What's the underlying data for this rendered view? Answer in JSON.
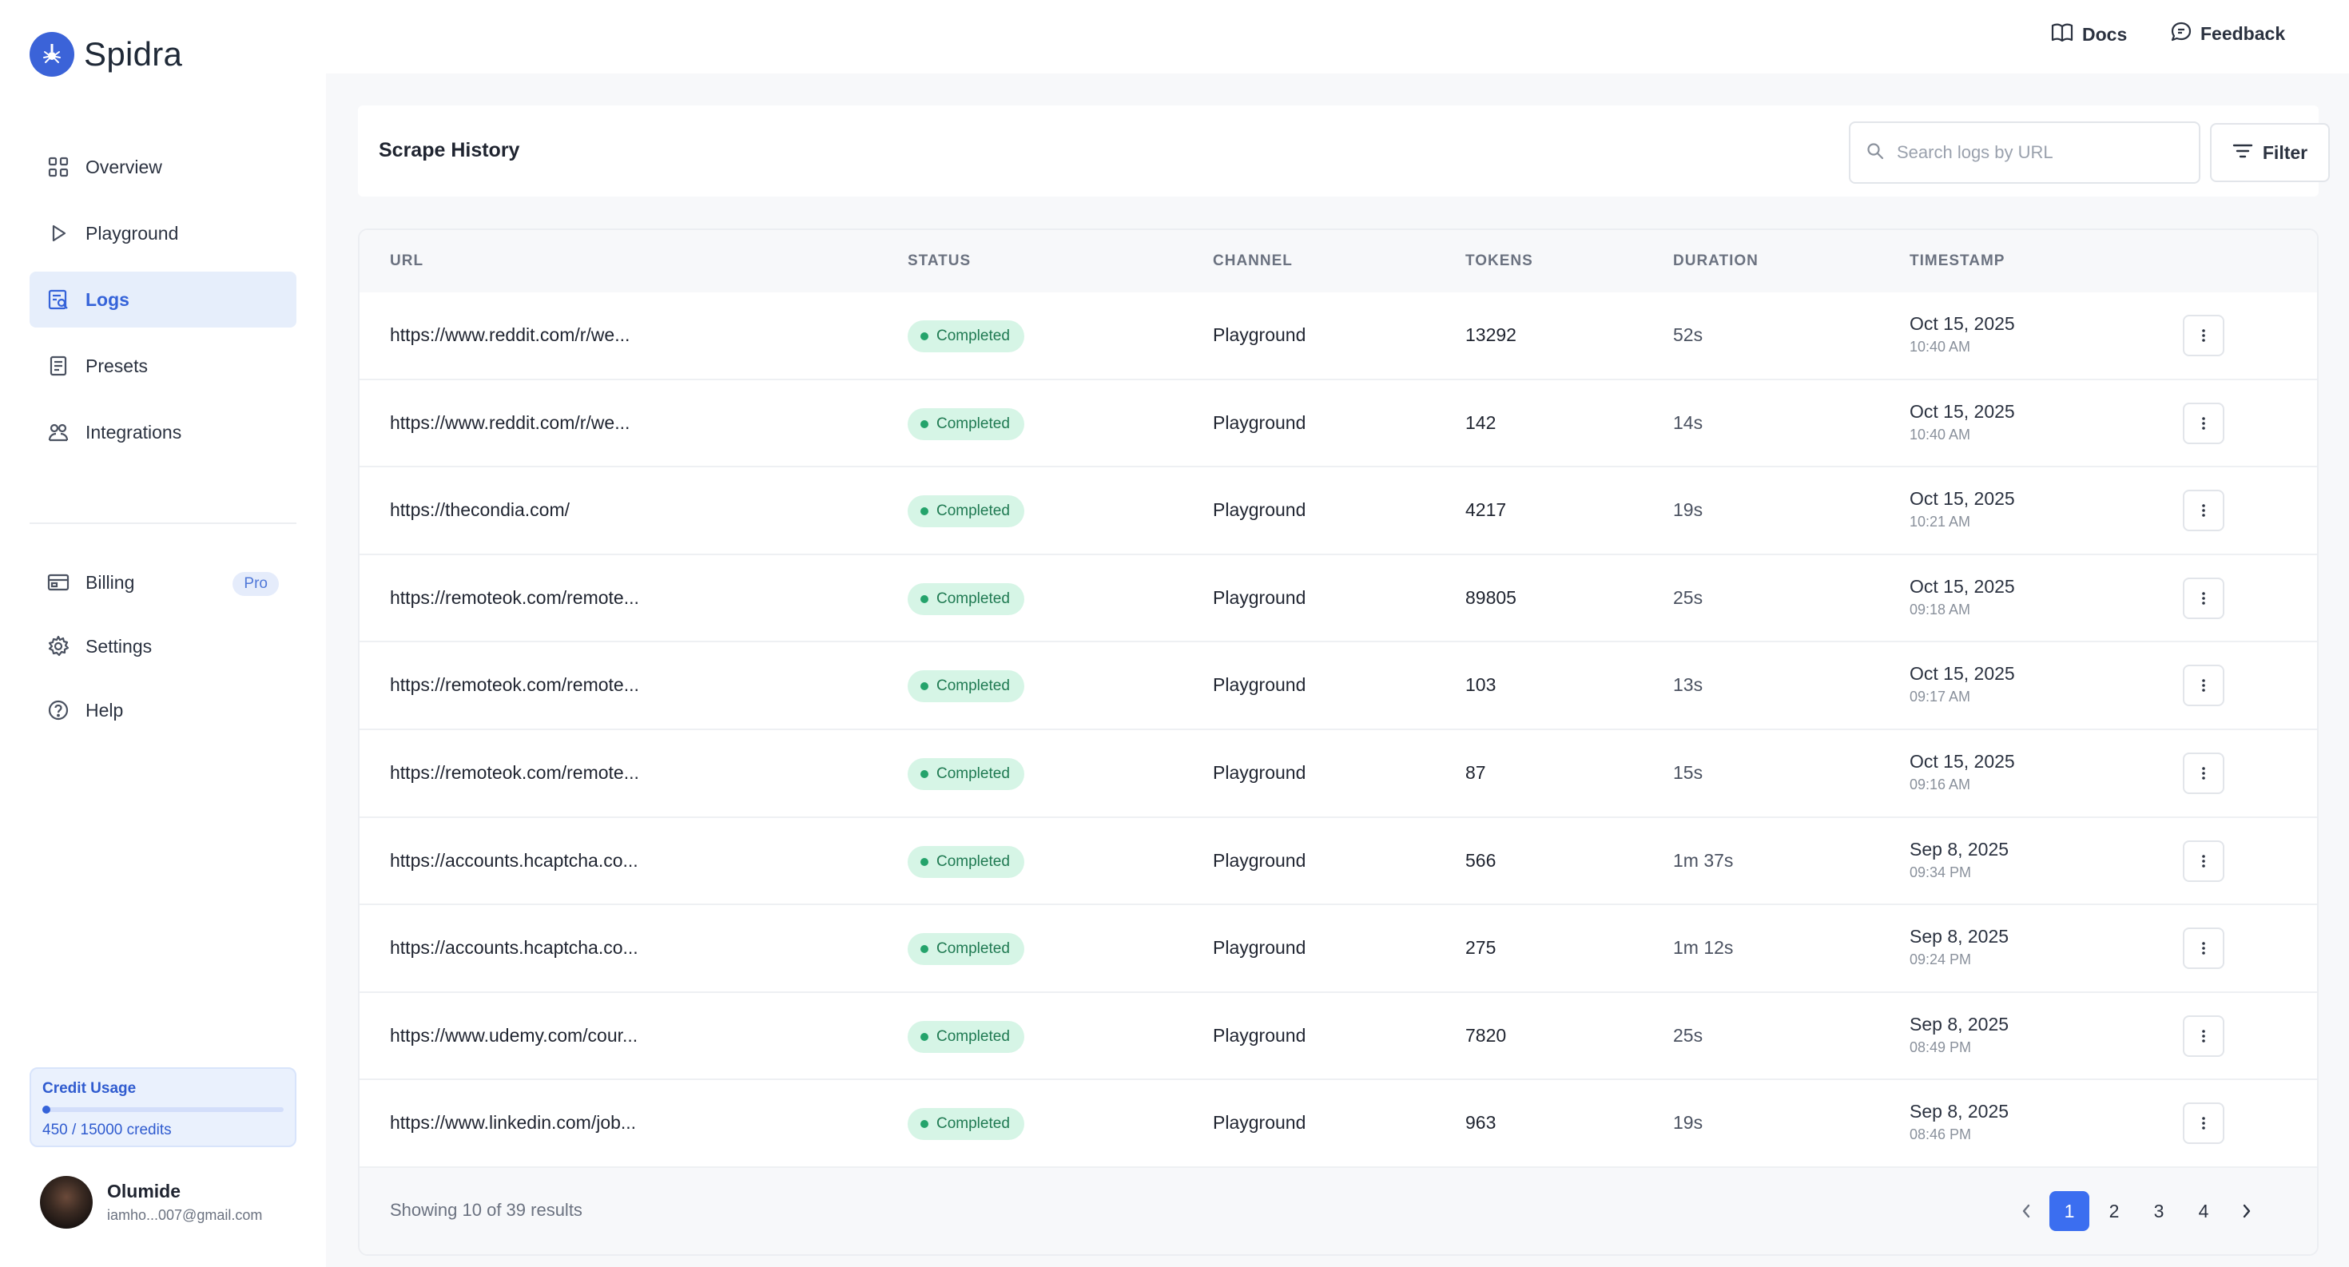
{
  "brand": {
    "name": "Spidra"
  },
  "topbar": {
    "docs": "Docs",
    "feedback": "Feedback"
  },
  "sidebar": {
    "items": [
      {
        "label": "Overview",
        "icon": "grid-icon"
      },
      {
        "label": "Playground",
        "icon": "play-icon"
      },
      {
        "label": "Logs",
        "icon": "logs-search-icon",
        "active": true
      },
      {
        "label": "Presets",
        "icon": "preset-icon"
      },
      {
        "label": "Integrations",
        "icon": "integrations-icon"
      }
    ],
    "secondary": [
      {
        "label": "Billing",
        "icon": "billing-icon",
        "badge": "Pro"
      },
      {
        "label": "Settings",
        "icon": "gear-icon"
      },
      {
        "label": "Help",
        "icon": "help-icon"
      }
    ],
    "credit": {
      "title": "Credit Usage",
      "text": "450 / 15000 credits",
      "used": 450,
      "total": 15000
    },
    "user": {
      "name": "Olumide",
      "email": "iamho...007@gmail.com"
    }
  },
  "page": {
    "title": "Scrape History",
    "search_placeholder": "Search logs by URL",
    "filter_label": "Filter"
  },
  "table": {
    "columns": [
      "URL",
      "STATUS",
      "CHANNEL",
      "TOKENS",
      "DURATION",
      "TIMESTAMP"
    ],
    "rows": [
      {
        "url": "https://www.reddit.com/r/we...",
        "status": "Completed",
        "channel": "Playground",
        "tokens": "13292",
        "duration": "52s",
        "date": "Oct 15, 2025",
        "time": "10:40 AM"
      },
      {
        "url": "https://www.reddit.com/r/we...",
        "status": "Completed",
        "channel": "Playground",
        "tokens": "142",
        "duration": "14s",
        "date": "Oct 15, 2025",
        "time": "10:40 AM"
      },
      {
        "url": "https://thecondia.com/",
        "status": "Completed",
        "channel": "Playground",
        "tokens": "4217",
        "duration": "19s",
        "date": "Oct 15, 2025",
        "time": "10:21 AM"
      },
      {
        "url": "https://remoteok.com/remote...",
        "status": "Completed",
        "channel": "Playground",
        "tokens": "89805",
        "duration": "25s",
        "date": "Oct 15, 2025",
        "time": "09:18 AM"
      },
      {
        "url": "https://remoteok.com/remote...",
        "status": "Completed",
        "channel": "Playground",
        "tokens": "103",
        "duration": "13s",
        "date": "Oct 15, 2025",
        "time": "09:17 AM"
      },
      {
        "url": "https://remoteok.com/remote...",
        "status": "Completed",
        "channel": "Playground",
        "tokens": "87",
        "duration": "15s",
        "date": "Oct 15, 2025",
        "time": "09:16 AM"
      },
      {
        "url": "https://accounts.hcaptcha.co...",
        "status": "Completed",
        "channel": "Playground",
        "tokens": "566",
        "duration": "1m 37s",
        "date": "Sep 8, 2025",
        "time": "09:34 PM"
      },
      {
        "url": "https://accounts.hcaptcha.co...",
        "status": "Completed",
        "channel": "Playground",
        "tokens": "275",
        "duration": "1m 12s",
        "date": "Sep 8, 2025",
        "time": "09:24 PM"
      },
      {
        "url": "https://www.udemy.com/cour...",
        "status": "Completed",
        "channel": "Playground",
        "tokens": "7820",
        "duration": "25s",
        "date": "Sep 8, 2025",
        "time": "08:49 PM"
      },
      {
        "url": "https://www.linkedin.com/job...",
        "status": "Completed",
        "channel": "Playground",
        "tokens": "963",
        "duration": "19s",
        "date": "Sep 8, 2025",
        "time": "08:46 PM"
      }
    ],
    "footer": {
      "showing": "Showing 10 of 39 results"
    },
    "pagination": {
      "pages": [
        "1",
        "2",
        "3",
        "4"
      ],
      "current": "1"
    }
  },
  "colors": {
    "accent": "#3b6ef0",
    "status_bg": "#d6f5e6",
    "status_text": "#1f7a52"
  }
}
